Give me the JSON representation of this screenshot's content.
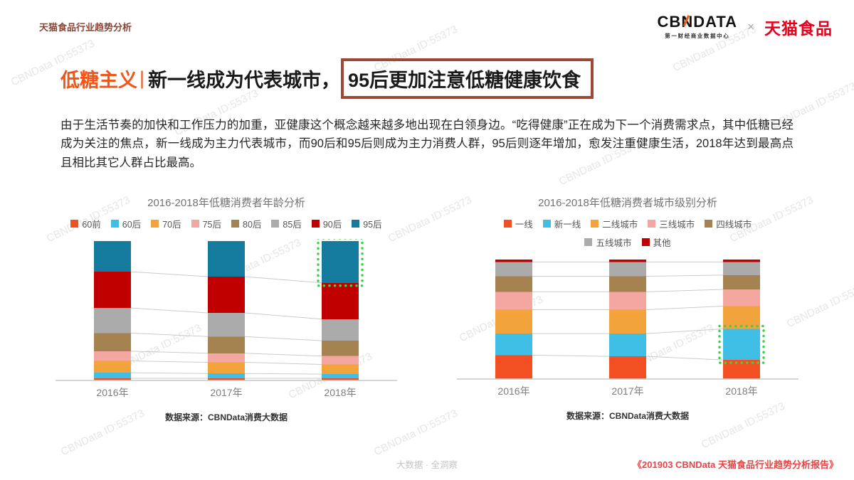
{
  "header": {
    "breadcrumb": "天猫食品行业趋势分析",
    "cbn_left": "CB",
    "cbn_mid": "N",
    "cbn_right": "DATA",
    "cbn_sub": "第一财经商业数据中心",
    "times": "×",
    "tmall": "天猫食品"
  },
  "title": {
    "keyword": "低糖主义",
    "divider": "|",
    "plain": "新一线成为代表城市，",
    "boxed": "95后更加注意低糖健康饮食"
  },
  "paragraph": "由于生活节奏的加快和工作压力的加重，亚健康这个概念越来越多地出现在白领身边。“吃得健康”正在成为下一个消费需求点，其中低糖已经成为关注的焦点，新一线成为主力代表城市，而90后和95后则成为主力消费人群，95后则逐年增加，愈发注重健康生活，2018年达到最高点且相比其它人群占比最高。",
  "watermark": "CBNData ID:55373",
  "footer": {
    "center": "大数据 · 全洞察",
    "right": "《201903 CBNData 天猫食品行业趋势分析报告》"
  },
  "colors": {
    "highlight_green": "#3BD24B",
    "title_orange": "#F0551A",
    "box_maroon": "#9E4938",
    "tmall_red": "#E8001C",
    "connector_gray": "#CBCBCB"
  },
  "chart_data": [
    {
      "type": "bar",
      "stacked": true,
      "values_are_percent": true,
      "title": "2016-2018年低糖消费者年龄分析",
      "xlabel": "",
      "ylabel": "",
      "ylim": [
        0,
        100
      ],
      "grid": false,
      "legend_position": "top",
      "categories": [
        "2016年",
        "2017年",
        "2018年"
      ],
      "series": [
        {
          "name": "60前",
          "color": "#F25022",
          "values": [
            1.5,
            1.5,
            1.5
          ]
        },
        {
          "name": "60后",
          "color": "#3FBFE6",
          "values": [
            4,
            3.5,
            3
          ]
        },
        {
          "name": "70后",
          "color": "#F2A33C",
          "values": [
            8.5,
            8,
            7
          ]
        },
        {
          "name": "75后",
          "color": "#F4A6A0",
          "values": [
            7,
            6.5,
            6
          ]
        },
        {
          "name": "80后",
          "color": "#A58350",
          "values": [
            13,
            12,
            11
          ]
        },
        {
          "name": "85后",
          "color": "#ABABAB",
          "values": [
            18,
            17,
            15.5
          ]
        },
        {
          "name": "90后",
          "color": "#C00000",
          "values": [
            26,
            26,
            26
          ]
        },
        {
          "name": "95后",
          "color": "#147A9E",
          "values": [
            22,
            25.5,
            30
          ]
        }
      ],
      "highlight": {
        "series": "95后",
        "category": "2018年"
      },
      "source": "数据来源：CBNData消费大数据"
    },
    {
      "type": "bar",
      "stacked": true,
      "values_are_percent": true,
      "title": "2016-2018年低糖消费者城市级别分析",
      "xlabel": "",
      "ylabel": "",
      "ylim": [
        0,
        100
      ],
      "grid": false,
      "legend_position": "top",
      "categories": [
        "2016年",
        "2017年",
        "2018年"
      ],
      "series": [
        {
          "name": "一线",
          "color": "#F25022",
          "values": [
            20,
            19,
            16
          ]
        },
        {
          "name": "新一线",
          "color": "#3FBFE6",
          "values": [
            18,
            19,
            26
          ]
        },
        {
          "name": "二线城市",
          "color": "#F2A33C",
          "values": [
            20,
            20,
            19
          ]
        },
        {
          "name": "三线城市",
          "color": "#F4A6A0",
          "values": [
            15,
            15,
            14
          ]
        },
        {
          "name": "四线城市",
          "color": "#A58350",
          "values": [
            13,
            13,
            12
          ]
        },
        {
          "name": "五线城市",
          "color": "#ABABAB",
          "values": [
            12,
            12,
            11
          ]
        },
        {
          "name": "其他",
          "color": "#C00000",
          "values": [
            2,
            2,
            2
          ]
        }
      ],
      "highlight": {
        "series": "新一线",
        "category": "2018年"
      },
      "source": "数据来源：CBNData消费大数据"
    }
  ]
}
